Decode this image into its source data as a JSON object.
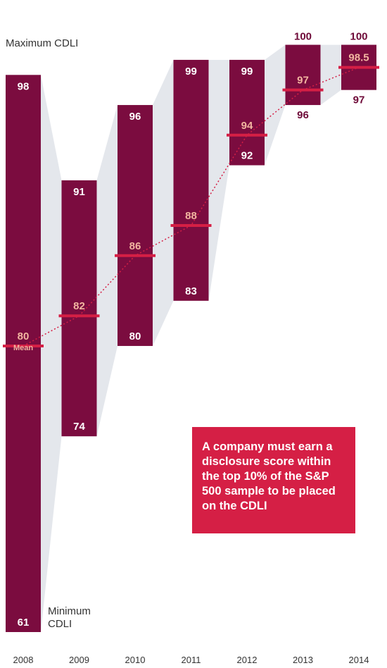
{
  "chart_data": {
    "type": "range-bar",
    "categories": [
      "2008",
      "2009",
      "2010",
      "2011",
      "2012",
      "2013",
      "2014"
    ],
    "series": [
      {
        "name": "Maximum CDLI",
        "values": [
          98,
          91,
          96,
          99,
          99,
          100,
          100
        ]
      },
      {
        "name": "Minimum CDLI",
        "values": [
          61,
          74,
          80,
          83,
          92,
          96,
          97
        ]
      },
      {
        "name": "Mean",
        "values": [
          80,
          82,
          86,
          88,
          94,
          97,
          98.5
        ]
      }
    ],
    "labels": {
      "max_label": "Maximum CDLI",
      "min_label": "Minimum CDLI",
      "mean_label": "Mean"
    },
    "ylim": [
      61,
      100
    ],
    "grid": false,
    "legend": "none"
  },
  "callout": {
    "text": "A company must earn a disclosure score within the top 10% of the S&P 500 sample to be placed on the CDLI"
  },
  "colors": {
    "bar": "#7b0c3f",
    "mean_line": "#d51f45",
    "mean_label": "#f2b6a0",
    "band": "#e4e7ec",
    "callout": "#d51f45",
    "text_dark": "#6e0a38"
  }
}
